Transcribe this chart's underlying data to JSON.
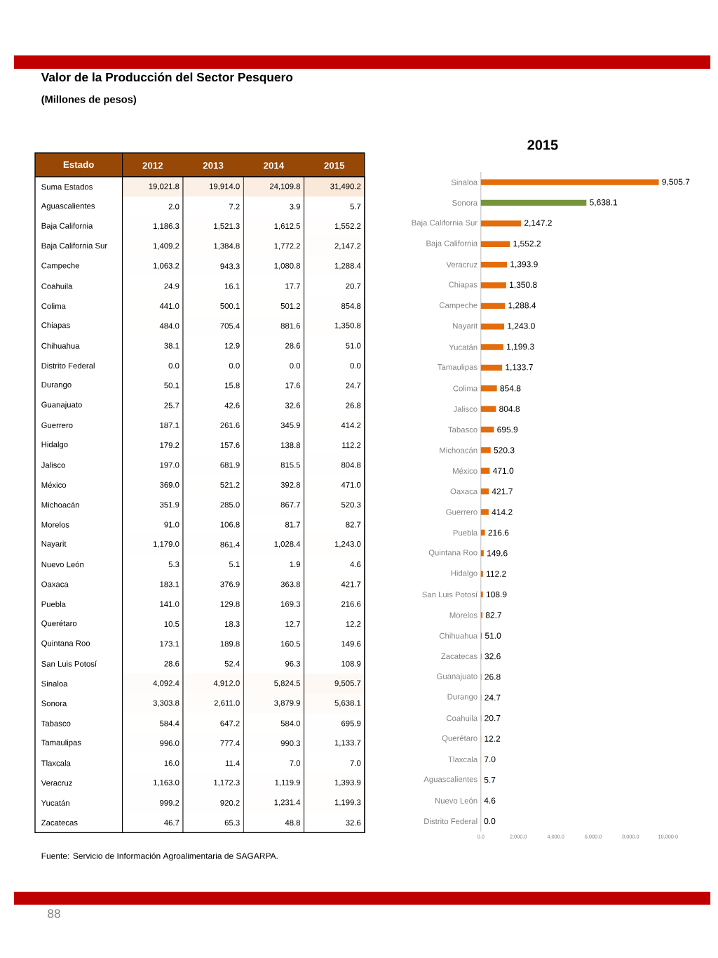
{
  "chart_data": [
    {
      "type": "heatmap",
      "title": "Valor de la Producción del Sector Pesquero",
      "subtitle": "(Millones de pesos)",
      "ylabel": "Estado",
      "categories": [
        "2012",
        "2013",
        "2014",
        "2015"
      ],
      "y_categories": [
        "Suma Estados",
        "Aguascalientes",
        "Baja California",
        "Baja California Sur",
        "Campeche",
        "Coahuila",
        "Colima",
        "Chiapas",
        "Chihuahua",
        "Distrito Federal",
        "Durango",
        "Guanajuato",
        "Guerrero",
        "Hidalgo",
        "Jalisco",
        "México",
        "Michoacán",
        "Morelos",
        "Nayarit",
        "Nuevo León",
        "Oaxaca",
        "Puebla",
        "Querétaro",
        "Quintana Roo",
        "San Luis Potosí",
        "Sinaloa",
        "Sonora",
        "Tabasco",
        "Tamaulipas",
        "Tlaxcala",
        "Veracruz",
        "Yucatán",
        "Zacatecas"
      ],
      "cells": [
        [
          19021.8,
          19914.0,
          24109.8,
          31490.2
        ],
        [
          2.0,
          7.2,
          3.9,
          5.7
        ],
        [
          1186.3,
          1521.3,
          1612.5,
          1552.2
        ],
        [
          1409.2,
          1384.8,
          1772.2,
          2147.2
        ],
        [
          1063.2,
          943.3,
          1080.8,
          1288.4
        ],
        [
          24.9,
          16.1,
          17.7,
          20.7
        ],
        [
          441.0,
          500.1,
          501.2,
          854.8
        ],
        [
          484.0,
          705.4,
          881.6,
          1350.8
        ],
        [
          38.1,
          12.9,
          28.6,
          51.0
        ],
        [
          0.0,
          0.0,
          0.0,
          0.0
        ],
        [
          50.1,
          15.8,
          17.6,
          24.7
        ],
        [
          25.7,
          42.6,
          32.6,
          26.8
        ],
        [
          187.1,
          261.6,
          345.9,
          414.2
        ],
        [
          179.2,
          157.6,
          138.8,
          112.2
        ],
        [
          197.0,
          681.9,
          815.5,
          804.8
        ],
        [
          369.0,
          521.2,
          392.8,
          471.0
        ],
        [
          351.9,
          285.0,
          867.7,
          520.3
        ],
        [
          91.0,
          106.8,
          81.7,
          82.7
        ],
        [
          1179.0,
          861.4,
          1028.4,
          1243.0
        ],
        [
          5.3,
          5.1,
          1.9,
          4.6
        ],
        [
          183.1,
          376.9,
          363.8,
          421.7
        ],
        [
          141.0,
          129.8,
          169.3,
          216.6
        ],
        [
          10.5,
          18.3,
          12.7,
          12.2
        ],
        [
          173.1,
          189.8,
          160.5,
          149.6
        ],
        [
          28.6,
          52.4,
          96.3,
          108.9
        ],
        [
          4092.4,
          4912.0,
          5824.5,
          9505.7
        ],
        [
          3303.8,
          2611.0,
          3879.9,
          5638.1
        ],
        [
          584.4,
          647.2,
          584.0,
          695.9
        ],
        [
          996.0,
          777.4,
          990.3,
          1133.7
        ],
        [
          16.0,
          11.4,
          7.0,
          7.0
        ],
        [
          1163.0,
          1172.3,
          1119.9,
          1393.9
        ],
        [
          999.2,
          920.2,
          1231.4,
          1199.3
        ],
        [
          46.7,
          65.3,
          48.8,
          32.6
        ]
      ],
      "cell_labels": [
        [
          "19,021.8",
          "19,914.0",
          "24,109.8",
          "31,490.2"
        ],
        [
          "2.0",
          "7.2",
          "3.9",
          "5.7"
        ],
        [
          "1,186.3",
          "1,521.3",
          "1,612.5",
          "1,552.2"
        ],
        [
          "1,409.2",
          "1,384.8",
          "1,772.2",
          "2,147.2"
        ],
        [
          "1,063.2",
          "943.3",
          "1,080.8",
          "1,288.4"
        ],
        [
          "24.9",
          "16.1",
          "17.7",
          "20.7"
        ],
        [
          "441.0",
          "500.1",
          "501.2",
          "854.8"
        ],
        [
          "484.0",
          "705.4",
          "881.6",
          "1,350.8"
        ],
        [
          "38.1",
          "12.9",
          "28.6",
          "51.0"
        ],
        [
          "0.0",
          "0.0",
          "0.0",
          "0.0"
        ],
        [
          "50.1",
          "15.8",
          "17.6",
          "24.7"
        ],
        [
          "25.7",
          "42.6",
          "32.6",
          "26.8"
        ],
        [
          "187.1",
          "261.6",
          "345.9",
          "414.2"
        ],
        [
          "179.2",
          "157.6",
          "138.8",
          "112.2"
        ],
        [
          "197.0",
          "681.9",
          "815.5",
          "804.8"
        ],
        [
          "369.0",
          "521.2",
          "392.8",
          "471.0"
        ],
        [
          "351.9",
          "285.0",
          "867.7",
          "520.3"
        ],
        [
          "91.0",
          "106.8",
          "81.7",
          "82.7"
        ],
        [
          "1,179.0",
          "861.4",
          "1,028.4",
          "1,243.0"
        ],
        [
          "5.3",
          "5.1",
          "1.9",
          "4.6"
        ],
        [
          "183.1",
          "376.9",
          "363.8",
          "421.7"
        ],
        [
          "141.0",
          "129.8",
          "169.3",
          "216.6"
        ],
        [
          "10.5",
          "18.3",
          "12.7",
          "12.2"
        ],
        [
          "173.1",
          "189.8",
          "160.5",
          "149.6"
        ],
        [
          "28.6",
          "52.4",
          "96.3",
          "108.9"
        ],
        [
          "4,092.4",
          "4,912.0",
          "5,824.5",
          "9,505.7"
        ],
        [
          "3,303.8",
          "2,611.0",
          "3,879.9",
          "5,638.1"
        ],
        [
          "584.4",
          "647.2",
          "584.0",
          "695.9"
        ],
        [
          "996.0",
          "777.4",
          "990.3",
          "1,133.7"
        ],
        [
          "16.0",
          "11.4",
          "7.0",
          "7.0"
        ],
        [
          "1,163.0",
          "1,172.3",
          "1,119.9",
          "1,393.9"
        ],
        [
          "999.2",
          "920.2",
          "1,231.4",
          "1,199.3"
        ],
        [
          "46.7",
          "65.3",
          "48.8",
          "32.6"
        ]
      ],
      "annotations": [
        "Fuente: Servicio de Información Agroalimentaria de SAGARPA.",
        "88"
      ]
    },
    {
      "type": "bar",
      "orientation": "horizontal",
      "title": "2015",
      "categories": [
        "Sinaloa",
        "Sonora",
        "Baja California Sur",
        "Baja California",
        "Veracruz",
        "Chiapas",
        "Campeche",
        "Nayarit",
        "Yucatán",
        "Tamaulipas",
        "Colima",
        "Jalisco",
        "Tabasco",
        "Michoacán",
        "México",
        "Oaxaca",
        "Guerrero",
        "Puebla",
        "Quintana Roo",
        "Hidalgo",
        "San Luis Potosí",
        "Morelos",
        "Chihuahua",
        "Zacatecas",
        "Guanajuato",
        "Durango",
        "Coahuila",
        "Querétaro",
        "Tlaxcala",
        "Aguascalientes",
        "Nuevo León",
        "Distrito Federal"
      ],
      "values": [
        9505.7,
        5638.1,
        2147.2,
        1552.2,
        1393.9,
        1350.8,
        1288.4,
        1243.0,
        1199.3,
        1133.7,
        854.8,
        804.8,
        695.9,
        520.3,
        471.0,
        421.7,
        414.2,
        216.6,
        149.6,
        112.2,
        108.9,
        82.7,
        51.0,
        32.6,
        26.8,
        24.7,
        20.7,
        12.2,
        7.0,
        5.7,
        4.6,
        0.0
      ],
      "value_labels": [
        "9,505.7",
        "5,638.1",
        "2,147.2",
        "1,552.2",
        "1,393.9",
        "1,350.8",
        "1,288.4",
        "1,243.0",
        "1,199.3",
        "1,133.7",
        "854.8",
        "804.8",
        "695.9",
        "520.3",
        "471.0",
        "421.7",
        "414.2",
        "216.6",
        "149.6",
        "112.2",
        "108.9",
        "82.7",
        "51.0",
        "32.6",
        "26.8",
        "24.7",
        "20.7",
        "12.2",
        "7.0",
        "5.7",
        "4.6",
        "0.0"
      ],
      "colors": [
        "#e46c0a",
        "#77933c",
        "#e46c0a",
        "#e46c0a",
        "#e46c0a",
        "#e46c0a",
        "#e46c0a",
        "#e46c0a",
        "#e46c0a",
        "#e46c0a",
        "#e46c0a",
        "#e46c0a",
        "#e46c0a",
        "#e46c0a",
        "#e46c0a",
        "#e46c0a",
        "#e46c0a",
        "#e46c0a",
        "#e46c0a",
        "#e46c0a",
        "#e46c0a",
        "#e46c0a",
        "#e46c0a",
        "#e46c0a",
        "#e46c0a",
        "#e46c0a",
        "#e46c0a",
        "#e46c0a",
        "#e46c0a",
        "#e46c0a",
        "#e46c0a",
        "#e46c0a"
      ],
      "xlim": [
        0,
        10000
      ],
      "xticks": [
        {
          "value": 0,
          "label": "0.0"
        },
        {
          "value": 2000,
          "label": "2,000.0"
        },
        {
          "value": 4000,
          "label": "4,000.0"
        },
        {
          "value": 6000,
          "label": "6,000.0"
        },
        {
          "value": 8000,
          "label": "8,000.0"
        },
        {
          "value": 10000,
          "label": "10,000.0"
        }
      ]
    }
  ]
}
